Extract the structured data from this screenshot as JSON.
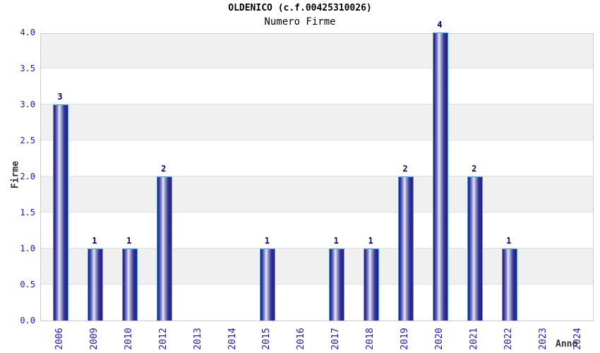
{
  "chart_data": {
    "type": "bar",
    "title": "OLDENICO (c.f.00425310026)",
    "subtitle": "Numero Firme",
    "xlabel": "Anno",
    "ylabel": "Firme",
    "categories": [
      "2006",
      "2009",
      "2010",
      "2012",
      "2013",
      "2014",
      "2015",
      "2016",
      "2017",
      "2018",
      "2019",
      "2020",
      "2021",
      "2022",
      "2023",
      "2024"
    ],
    "values": [
      3,
      1,
      1,
      2,
      0,
      0,
      1,
      0,
      1,
      1,
      2,
      4,
      2,
      1,
      0,
      0
    ],
    "bar_labels_shown_for_nonzero_only": true,
    "ylim": [
      0.0,
      4.0
    ],
    "ytick_step": 0.5,
    "yticks": [
      "0.0",
      "0.5",
      "1.0",
      "1.5",
      "2.0",
      "2.5",
      "3.0",
      "3.5",
      "4.0"
    ],
    "grid": true,
    "plot_bands": "alternating white and light gray every 0.5 units",
    "legend": "none"
  },
  "colors": {
    "background": "#ffffff",
    "title_text": "#000000",
    "tick_label_blue": "#1a1acc",
    "value_label_navy": "#000080",
    "axis_title_gray": "#333333",
    "band_gray": "#f0f0f0",
    "band_white": "#ffffff",
    "plot_border": "#cccccc",
    "gridline": "#dedede",
    "bar_dark": "#20207c",
    "bar_mid": "#9a9ad0",
    "bar_light": "#ececf8",
    "bar_outline": "#55a0e8"
  }
}
